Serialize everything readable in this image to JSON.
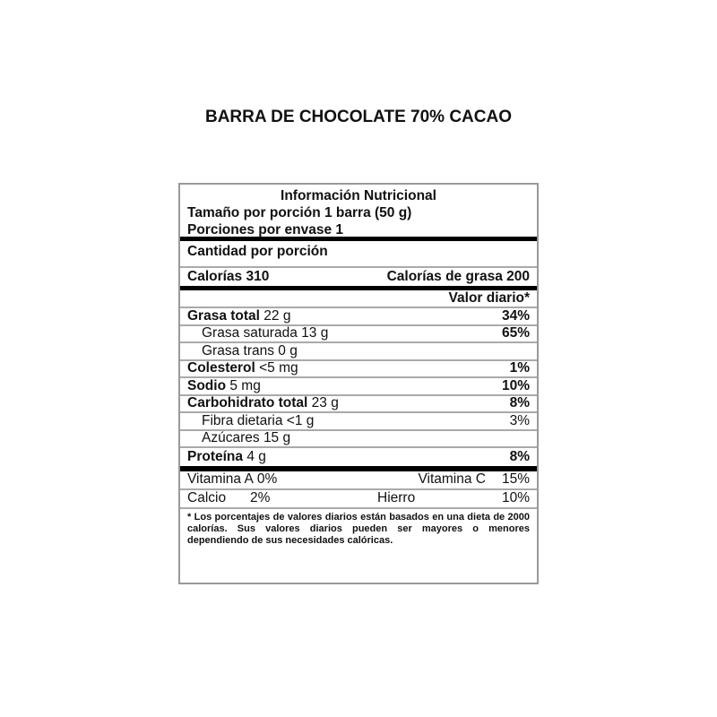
{
  "title": "BARRA DE CHOCOLATE 70% CACAO",
  "label": {
    "heading": "Información Nutricional",
    "serving_size": "Tamaño por porción 1 barra (50 g)",
    "servings": "Porciones por envase 1",
    "amount_per_serving": "Cantidad por porción",
    "calories": "Calorías 310",
    "calories_fat": "Calorías de grasa 200",
    "daily_value_header": "Valor diario*",
    "nutrients": [
      {
        "name": "Grasa total",
        "amount": "22 g",
        "dv": "34%",
        "bold": true,
        "indent": false
      },
      {
        "name": "Grasa saturada",
        "amount": "13 g",
        "dv": "65%",
        "bold": false,
        "indent": true,
        "dv_bold": true
      },
      {
        "name": "Grasa trans",
        "amount": "0 g",
        "dv": "",
        "bold": false,
        "indent": true
      },
      {
        "name": "Colesterol",
        "amount": "<5 mg",
        "dv": "1%",
        "bold": true,
        "indent": false
      },
      {
        "name": "Sodio",
        "amount": "5 mg",
        "dv": "10%",
        "bold": true,
        "indent": false
      },
      {
        "name": "Carbohidrato total",
        "amount": "23 g",
        "dv": "8%",
        "bold": true,
        "indent": false
      },
      {
        "name": "Fibra dietaria",
        "amount": "<1 g",
        "dv": "3%",
        "bold": false,
        "indent": true
      },
      {
        "name": "Azúcares",
        "amount": "15 g",
        "dv": "",
        "bold": false,
        "indent": true
      },
      {
        "name": "Proteína",
        "amount": "4 g",
        "dv": "8%",
        "bold": true,
        "indent": false
      }
    ],
    "vitamins": [
      {
        "left_name": "Vitamina A",
        "left_value": "0%",
        "right_name": "Vitamina C",
        "right_value": "15%"
      },
      {
        "left_name": "Calcio",
        "left_value": "2%",
        "right_name": "Hierro",
        "right_value": "10%"
      }
    ],
    "footnote": "* Los porcentajes de valores diarios están basados en una dieta de 2000 calorías.  Sus valores diarios pueden ser mayores o menores dependiendo de sus necesidades calóricas."
  }
}
